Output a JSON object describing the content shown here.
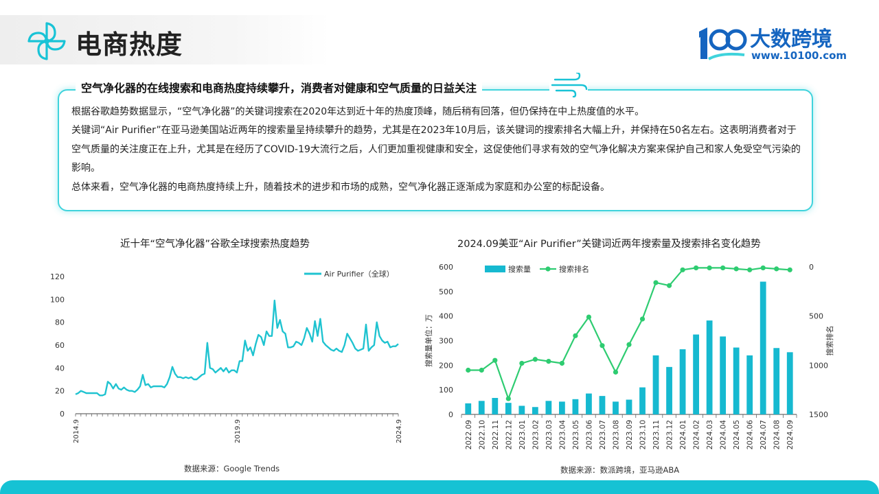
{
  "header": {
    "title": "电商热度",
    "brand_name": "大数跨境",
    "brand_url": "www.10100.com"
  },
  "summary": {
    "headline": "空气净化器的在线搜索和电商热度持续攀升，消费者对健康和空气质量的日益关注",
    "paragraphs": [
      "根据谷歌趋势数据显示，“空气净化器”的关键词搜索在2020年达到近十年的热度顶峰，随后稍有回落，但仍保持在中上热度值的水平。",
      "关键词“Air Purifier”在亚马逊美国站近两年的搜索量呈持续攀升的趋势，尤其是在2023年10月后，该关键词的搜索排名大幅上升，并保持在50名左右。这表明消费者对于空气质量的关注度正在上升，尤其是在经历了COVID-19大流行之后，人们更加重视健康和安全，这促使他们寻求有效的空气净化解决方案来保护自己和家人免受空气污染的影响。",
      "总体来看，空气净化器的电商热度持续上升，随着技术的进步和市场的成熟，空气净化器正逐渐成为家庭和办公室的标配设备。"
    ]
  },
  "colors": {
    "accent": "#16c2d4",
    "line": "#1fc3d0",
    "bar": "#16b9d0",
    "rank": "#2ecc71",
    "brand": "#1565c0"
  },
  "chart_data": [
    {
      "type": "line",
      "title": "近十年“空气净化器”谷歌全球搜索热度趋势",
      "source": "数据来源：Google Trends",
      "x_ticks": [
        "2014.9",
        "2019.9",
        "2024.9"
      ],
      "x_range": [
        0,
        120
      ],
      "y_ticks": [
        "0",
        "20",
        "40",
        "60",
        "80",
        "100",
        "120"
      ],
      "ylim": [
        0,
        120
      ],
      "legend": "top-right",
      "series": [
        {
          "name": "Air Purifier（全球）",
          "x": [
            0,
            1,
            2,
            3,
            4,
            5,
            6,
            7,
            8,
            9,
            10,
            11,
            12,
            13,
            14,
            15,
            16,
            17,
            18,
            19,
            20,
            21,
            22,
            23,
            24,
            25,
            26,
            27,
            28,
            29,
            30,
            31,
            32,
            33,
            34,
            35,
            36,
            37,
            38,
            39,
            40,
            41,
            42,
            43,
            44,
            45,
            46,
            47,
            48,
            49,
            50,
            51,
            52,
            53,
            54,
            55,
            56,
            57,
            58,
            59,
            60,
            61,
            62,
            63,
            64,
            65,
            66,
            67,
            68,
            69,
            70,
            71,
            72,
            73,
            74,
            75,
            76,
            77,
            78,
            79,
            80,
            81,
            82,
            83,
            84,
            85,
            86,
            87,
            88,
            89,
            90,
            91,
            92,
            93,
            94,
            95,
            96,
            97,
            98,
            99,
            100,
            101,
            102,
            103,
            104,
            105,
            106,
            107,
            108,
            109,
            110,
            111,
            112,
            113,
            114,
            115,
            116,
            117,
            118,
            119,
            120
          ],
          "y": [
            17,
            18,
            20,
            19,
            18,
            18,
            18,
            18,
            18,
            16,
            16,
            17,
            28,
            26,
            22,
            26,
            22,
            21,
            23,
            21,
            20,
            20,
            19,
            21,
            24,
            34,
            25,
            26,
            23,
            24,
            24,
            24,
            24,
            23,
            26,
            32,
            41,
            35,
            32,
            32,
            31,
            32,
            31,
            32,
            30,
            30,
            32,
            34,
            35,
            62,
            40,
            39,
            36,
            38,
            40,
            37,
            40,
            36,
            38,
            38,
            36,
            46,
            46,
            64,
            55,
            58,
            51,
            61,
            69,
            67,
            60,
            72,
            68,
            68,
            99,
            75,
            82,
            72,
            70,
            58,
            58,
            59,
            63,
            62,
            60,
            66,
            75,
            70,
            63,
            81,
            68,
            83,
            63,
            60,
            58,
            56,
            55,
            57,
            55,
            54,
            60,
            70,
            66,
            62,
            57,
            55,
            56,
            57,
            78,
            55,
            58,
            60,
            80,
            68,
            64,
            62,
            63,
            58,
            59,
            59,
            61
          ]
        }
      ]
    },
    {
      "type": "bar+line",
      "title": "2024.09美亚“Air Purifier”关键词近两年搜索量及搜索排名变化趋势",
      "source": "数据来源：数派跨境，亚马逊ABA",
      "categories": [
        "2022.09",
        "2022.10",
        "2022.11",
        "2022.12",
        "2023.01",
        "2023.02",
        "2023.03",
        "2023.04",
        "2023.05",
        "2023.06",
        "2023.07",
        "2023.08",
        "2023.09",
        "2023.10",
        "2023.11",
        "2023.12",
        "2024.01",
        "2024.02",
        "2024.03",
        "2024.04",
        "2024.05",
        "2024.06",
        "2024.07",
        "2024.08",
        "2024.09"
      ],
      "ylabel_left": "搜索量单位：万",
      "ylabel_right": "搜索排名",
      "ylim_left": [
        0,
        600
      ],
      "y_ticks_left": [
        "0",
        "100",
        "200",
        "300",
        "400",
        "500",
        "600"
      ],
      "ylim_right_reversed": [
        0,
        1500
      ],
      "y_ticks_right": [
        "0",
        "500",
        "1000",
        "1500"
      ],
      "legend": "top-left",
      "series": [
        {
          "name": "搜索量",
          "type": "bar",
          "values": [
            45,
            55,
            67,
            47,
            35,
            30,
            55,
            52,
            62,
            85,
            75,
            52,
            60,
            110,
            240,
            193,
            265,
            325,
            382,
            317,
            272,
            240,
            540,
            270,
            253
          ]
        },
        {
          "name": "搜索排名",
          "type": "line",
          "values": [
            1050,
            1050,
            950,
            1340,
            980,
            940,
            960,
            980,
            700,
            510,
            800,
            1070,
            790,
            530,
            160,
            190,
            30,
            10,
            10,
            10,
            20,
            30,
            10,
            20,
            30
          ]
        }
      ]
    }
  ]
}
